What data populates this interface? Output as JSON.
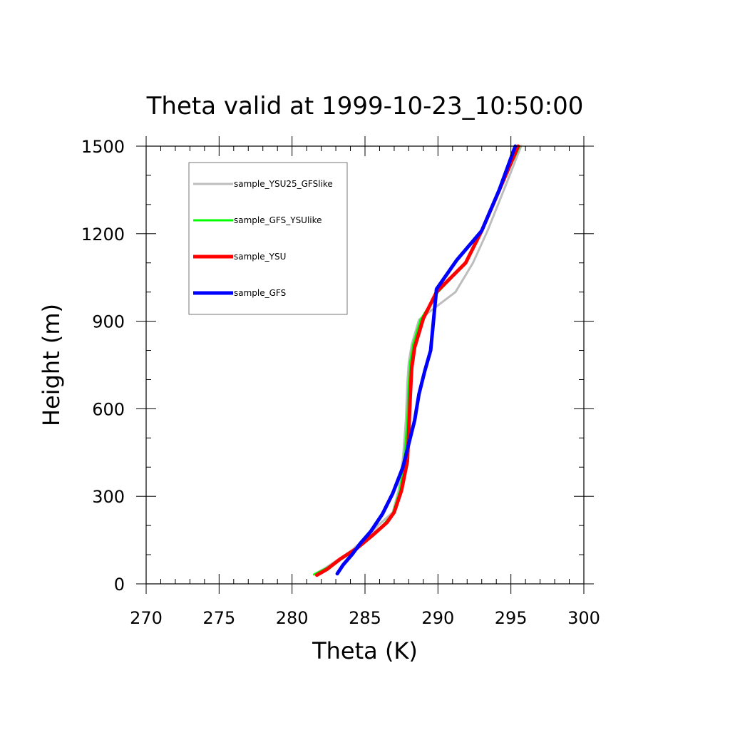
{
  "chart_data": {
    "type": "line",
    "title": "Theta valid at 1999-10-23_10:50:00",
    "xlabel": "Theta (K)",
    "ylabel": "Height (m)",
    "xlim": [
      270,
      300
    ],
    "ylim": [
      0,
      1500
    ],
    "xticks": [
      "270",
      "275",
      "280",
      "285",
      "290",
      "295",
      "300"
    ],
    "yticks": [
      "0",
      "300",
      "600",
      "900",
      "1200",
      "1500"
    ],
    "grid": false,
    "legend_position": "top-left",
    "series": [
      {
        "name": "sample_YSU25_GFSlike",
        "color": "#bdbdbd",
        "width": 3,
        "x": [
          281.6,
          282.3,
          283.2,
          284.1,
          285.3,
          286.0,
          286.9,
          287.3,
          287.6,
          287.8,
          287.9,
          288.0,
          288.2,
          288.7,
          291.2,
          292.4,
          293.4,
          294.6,
          295.7
        ],
        "y": [
          35,
          55,
          85,
          115,
          170,
          205,
          245,
          320,
          430,
          560,
          690,
          760,
          820,
          905,
          1000,
          1100,
          1210,
          1360,
          1500
        ]
      },
      {
        "name": "sample_GFS_YSUlike",
        "color": "#00ff00",
        "width": 3,
        "x": [
          281.5,
          282.3,
          283.3,
          284.3,
          285.5,
          286.3,
          286.9,
          287.4,
          287.7,
          287.9,
          288.0,
          288.1,
          288.3,
          288.8,
          290.0,
          291.9,
          293.0,
          294.3,
          295.6
        ],
        "y": [
          32,
          52,
          82,
          115,
          165,
          205,
          240,
          320,
          430,
          560,
          690,
          760,
          820,
          905,
          1000,
          1100,
          1210,
          1360,
          1500
        ]
      },
      {
        "name": "sample_YSU",
        "color": "#ff0000",
        "width": 5,
        "x": [
          281.7,
          282.4,
          283.3,
          284.4,
          285.6,
          286.5,
          287.0,
          287.5,
          287.9,
          288.0,
          288.1,
          288.2,
          288.4,
          289.0,
          289.9,
          291.9,
          293.0,
          294.3,
          295.5
        ],
        "y": [
          30,
          50,
          85,
          120,
          170,
          210,
          245,
          320,
          420,
          520,
          640,
          740,
          810,
          910,
          1000,
          1100,
          1210,
          1360,
          1500
        ]
      },
      {
        "name": "sample_GFS",
        "color": "#0000ff",
        "width": 5,
        "x": [
          283.1,
          283.5,
          284.1,
          284.7,
          285.4,
          286.2,
          286.9,
          287.6,
          288.0,
          288.4,
          288.7,
          289.1,
          289.5,
          289.9,
          291.3,
          293.0,
          294.2,
          295.3
        ],
        "y": [
          35,
          65,
          100,
          140,
          180,
          240,
          310,
          400,
          480,
          560,
          650,
          730,
          800,
          1010,
          1110,
          1210,
          1350,
          1500
        ]
      }
    ]
  }
}
